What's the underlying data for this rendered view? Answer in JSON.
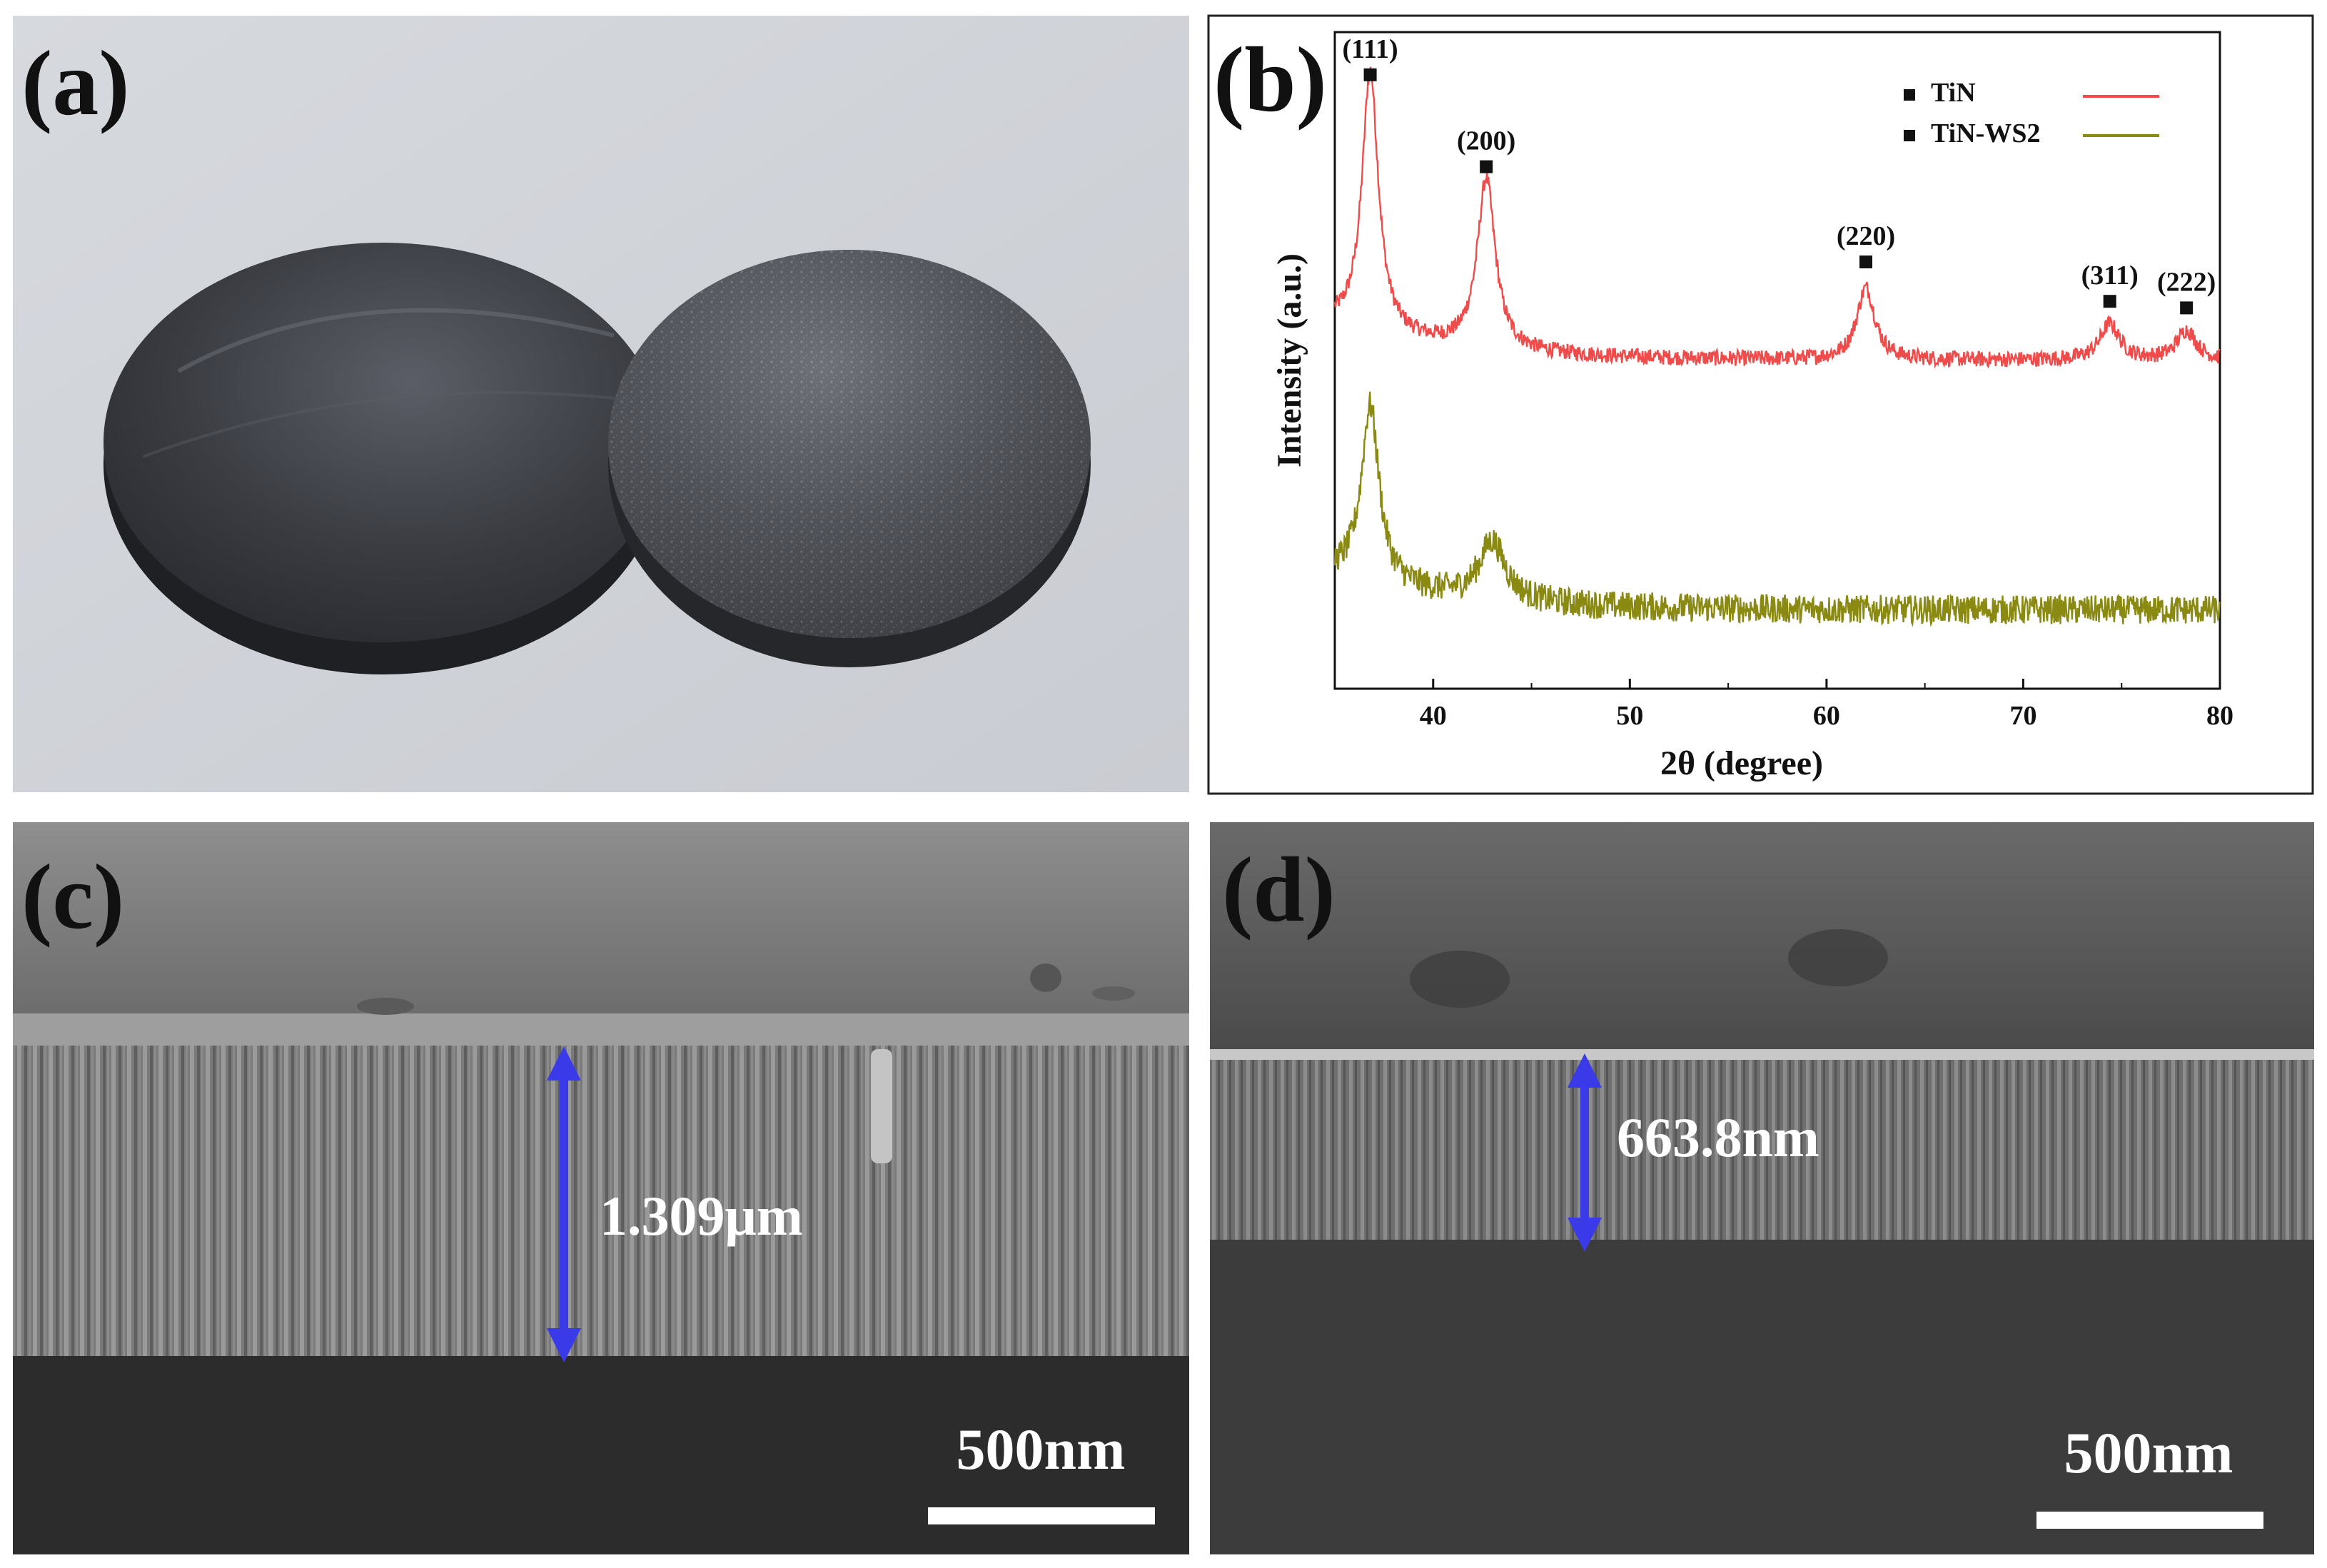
{
  "panels": {
    "a": {
      "label": "(a)"
    },
    "b": {
      "label": "(b)"
    },
    "c": {
      "label": "(c)",
      "measurement": "1.309μm",
      "scale_bar": "500nm"
    },
    "d": {
      "label": "(d)",
      "measurement": "663.8nm",
      "scale_bar": "500nm"
    }
  },
  "colors": {
    "tin": "#ef4b4b",
    "tin_ws2": "#8a8a12",
    "arrow": "#3a3ae8"
  },
  "chart_data": {
    "type": "line",
    "title": "",
    "xlabel": "2θ (degree)",
    "ylabel": "Intensity (a.u.)",
    "xlim": [
      35,
      80
    ],
    "xticks": [
      40,
      50,
      60,
      70,
      80
    ],
    "ylim": [
      0,
      10
    ],
    "legend_position": "top-right",
    "series": [
      {
        "name": "TiN",
        "color": "#ef4b4b",
        "baseline": 5.0,
        "peaks": [
          {
            "x": 36.8,
            "height": 4.0,
            "width": 0.5
          },
          {
            "x": 42.7,
            "height": 2.6,
            "width": 0.55
          },
          {
            "x": 62.0,
            "height": 1.1,
            "width": 0.55
          },
          {
            "x": 74.4,
            "height": 0.55,
            "width": 0.6
          },
          {
            "x": 78.3,
            "height": 0.45,
            "width": 0.6
          }
        ],
        "noise": 0.12
      },
      {
        "name": "TiN-WS2",
        "color": "#8a8a12",
        "baseline": 1.2,
        "peaks": [
          {
            "x": 36.8,
            "height": 2.7,
            "width": 0.55
          },
          {
            "x": 43.0,
            "height": 0.9,
            "width": 0.8
          }
        ],
        "noise": 0.22
      }
    ],
    "annotations": [
      {
        "text": "(111)",
        "x": 36.8,
        "y": 9.35
      },
      {
        "text": "(200)",
        "x": 42.7,
        "y": 7.95
      },
      {
        "text": "(220)",
        "x": 62.0,
        "y": 6.5
      },
      {
        "text": "(311)",
        "x": 74.4,
        "y": 5.9
      },
      {
        "text": "(222)",
        "x": 78.3,
        "y": 5.8
      }
    ]
  }
}
